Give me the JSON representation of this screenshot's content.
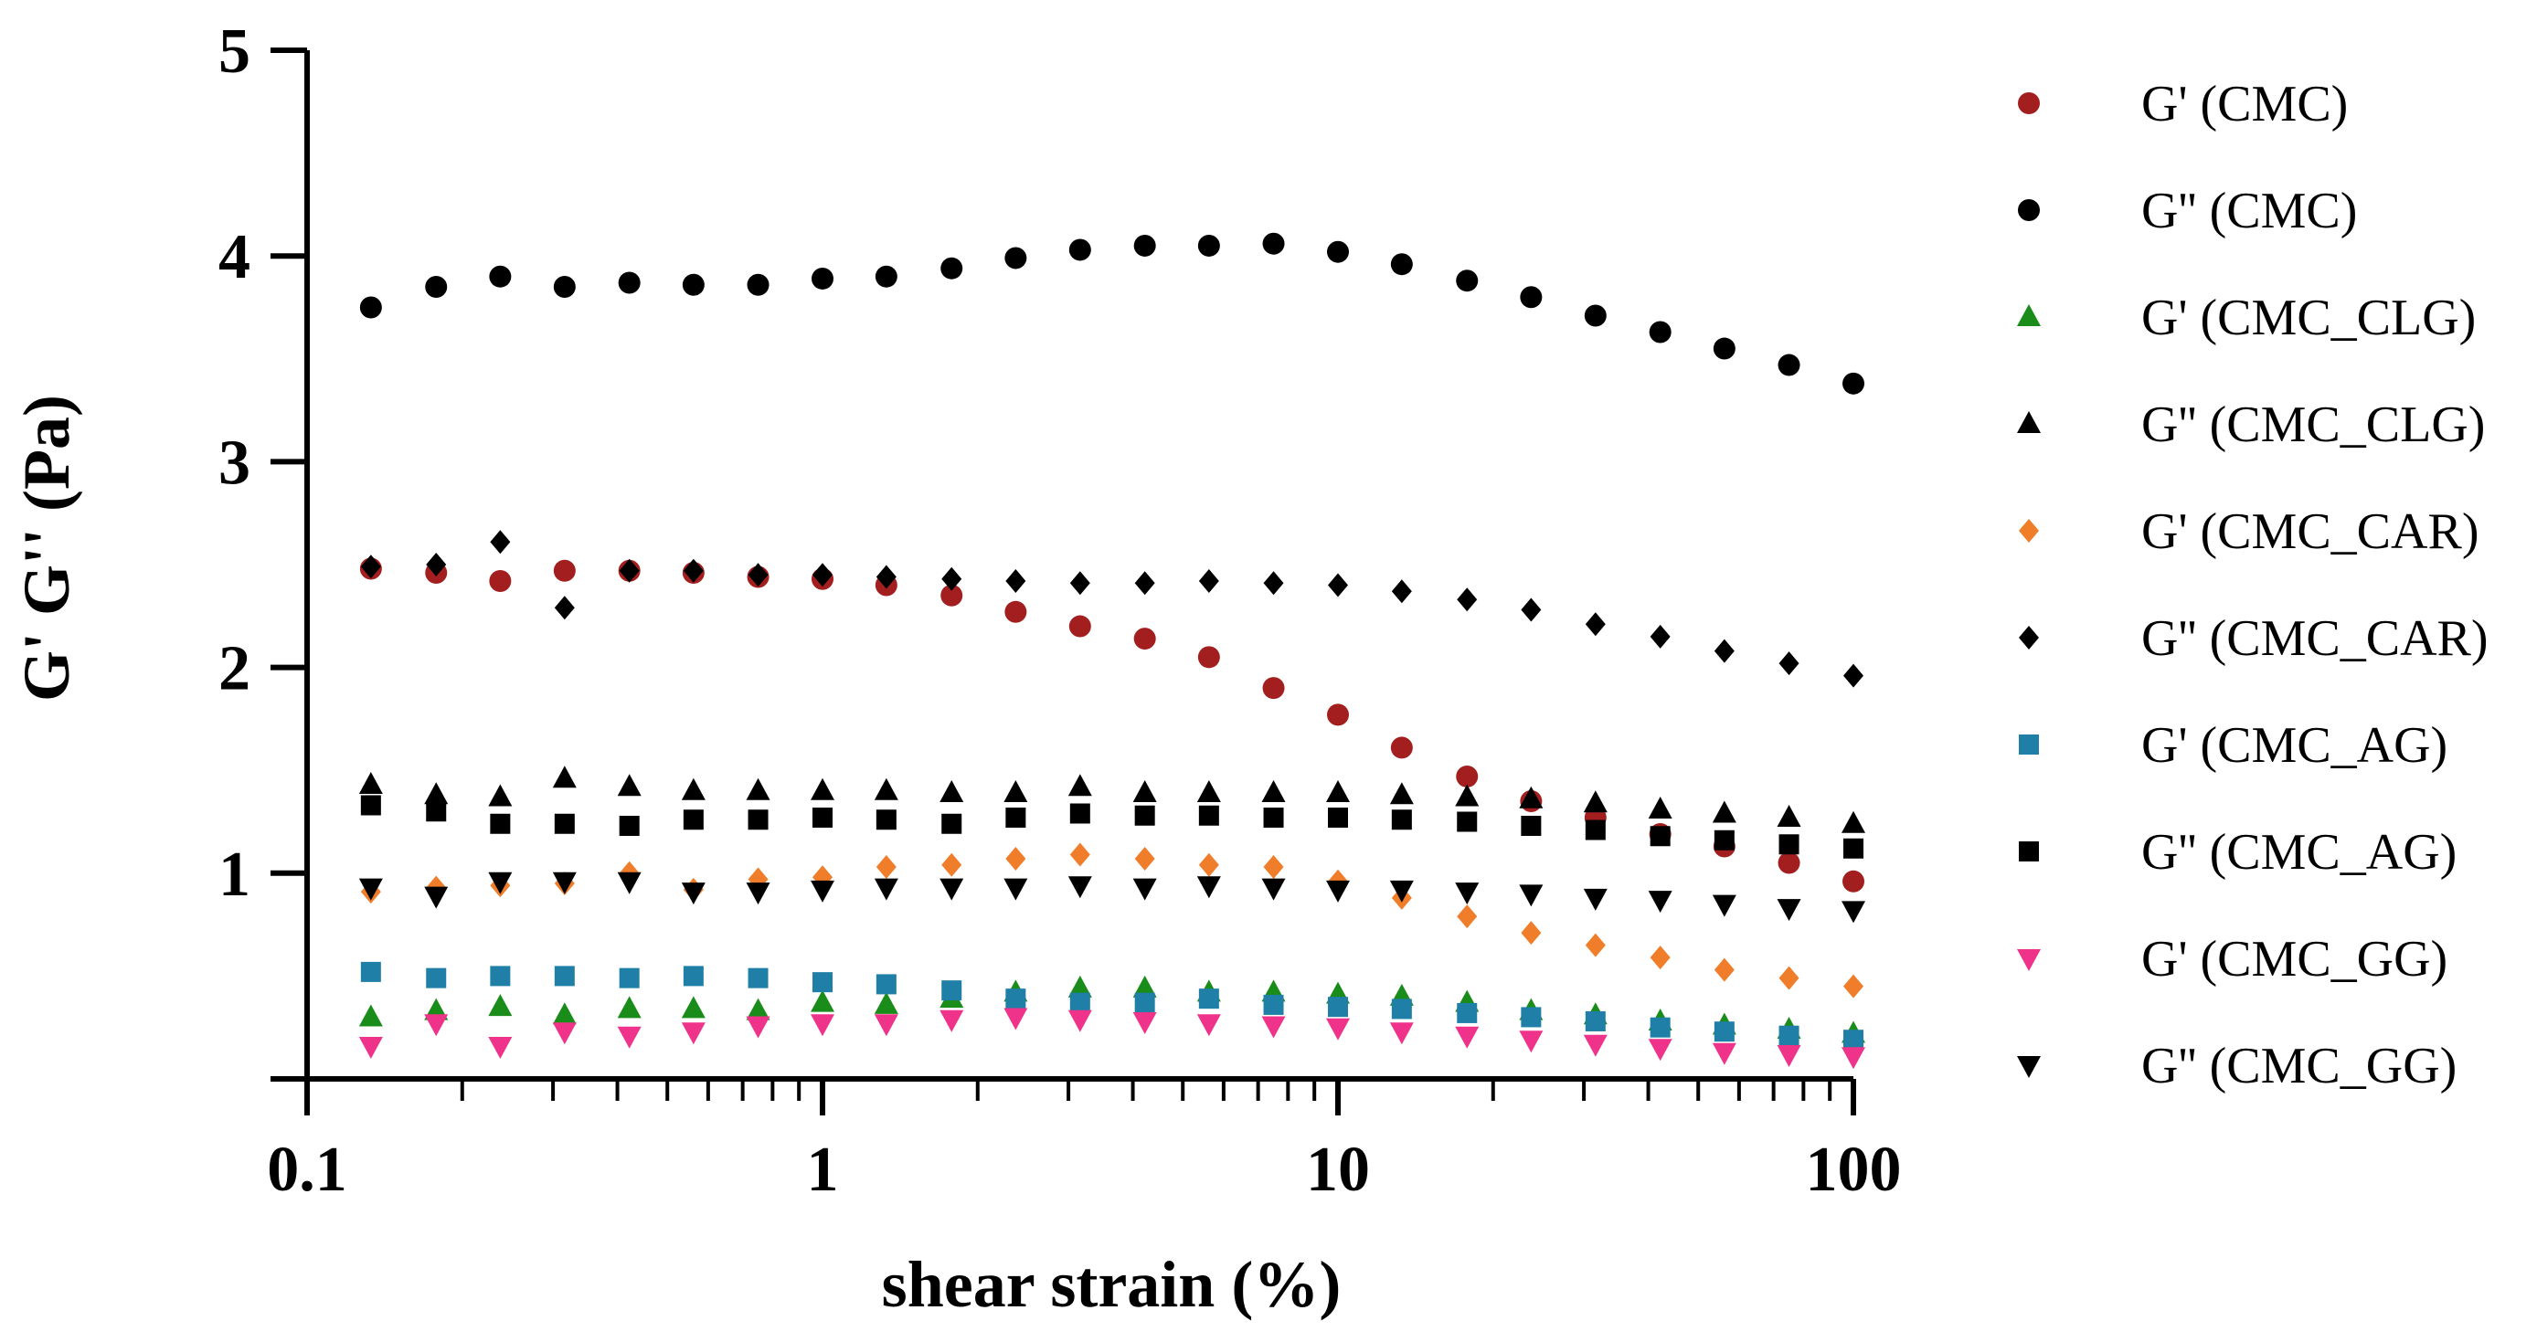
{
  "chart_data": {
    "type": "scatter",
    "title": "",
    "xlabel": "shear strain (%)",
    "ylabel": "G' G'' (Pa)",
    "xscale": "log",
    "xlim": [
      0.1,
      100
    ],
    "ylim": [
      0,
      5
    ],
    "xticks": [
      {
        "value": 0.1,
        "label": "0.1"
      },
      {
        "value": 1,
        "label": "1"
      },
      {
        "value": 10,
        "label": "10"
      },
      {
        "value": 100,
        "label": "100"
      }
    ],
    "yticks": [
      {
        "value": 1,
        "label": "1"
      },
      {
        "value": 2,
        "label": "2"
      },
      {
        "value": 3,
        "label": "3"
      },
      {
        "value": 4,
        "label": "4"
      },
      {
        "value": 5,
        "label": "5"
      }
    ],
    "legend_position": "right",
    "x": [
      0.133,
      0.178,
      0.237,
      0.316,
      0.422,
      0.562,
      0.75,
      1.0,
      1.33,
      1.78,
      2.37,
      3.16,
      4.22,
      5.62,
      7.5,
      10.0,
      13.3,
      17.8,
      23.7,
      31.6,
      42.2,
      56.2,
      75.0,
      100.0
    ],
    "series": [
      {
        "name": "G' (CMC)",
        "marker": "circle",
        "color": "#a31f1f",
        "values": [
          2.48,
          2.46,
          2.42,
          2.47,
          2.47,
          2.46,
          2.44,
          2.43,
          2.4,
          2.35,
          2.27,
          2.2,
          2.14,
          2.05,
          1.9,
          1.77,
          1.61,
          1.47,
          1.35,
          1.27,
          1.19,
          1.13,
          1.05,
          0.96
        ]
      },
      {
        "name": "G'' (CMC)",
        "marker": "circle",
        "color": "#000000",
        "values": [
          3.75,
          3.85,
          3.9,
          3.85,
          3.87,
          3.86,
          3.86,
          3.89,
          3.9,
          3.94,
          3.99,
          4.03,
          4.05,
          4.05,
          4.06,
          4.02,
          3.96,
          3.88,
          3.8,
          3.71,
          3.63,
          3.55,
          3.47,
          3.38
        ]
      },
      {
        "name": "G' (CMC_CLG)",
        "marker": "triangle-up",
        "color": "#1a8c1a",
        "values": [
          0.3,
          0.33,
          0.35,
          0.31,
          0.34,
          0.34,
          0.33,
          0.37,
          0.36,
          0.39,
          0.42,
          0.44,
          0.44,
          0.42,
          0.42,
          0.41,
          0.4,
          0.37,
          0.33,
          0.31,
          0.28,
          0.26,
          0.24,
          0.22
        ]
      },
      {
        "name": "G'' (CMC_CLG)",
        "marker": "triangle-up",
        "color": "#000000",
        "values": [
          1.43,
          1.38,
          1.37,
          1.46,
          1.42,
          1.4,
          1.4,
          1.4,
          1.4,
          1.39,
          1.39,
          1.42,
          1.39,
          1.39,
          1.39,
          1.39,
          1.38,
          1.37,
          1.36,
          1.34,
          1.31,
          1.29,
          1.27,
          1.24
        ]
      },
      {
        "name": "G' (CMC_CAR)",
        "marker": "diamond",
        "color": "#f07d2a",
        "values": [
          0.91,
          0.93,
          0.94,
          0.95,
          1.0,
          0.92,
          0.97,
          0.98,
          1.03,
          1.04,
          1.07,
          1.09,
          1.07,
          1.04,
          1.03,
          0.96,
          0.88,
          0.79,
          0.71,
          0.65,
          0.59,
          0.53,
          0.49,
          0.45
        ]
      },
      {
        "name": "G'' (CMC_CAR)",
        "marker": "diamond",
        "color": "#000000",
        "values": [
          2.49,
          2.5,
          2.61,
          2.29,
          2.47,
          2.47,
          2.45,
          2.45,
          2.44,
          2.43,
          2.42,
          2.41,
          2.41,
          2.42,
          2.41,
          2.4,
          2.37,
          2.33,
          2.28,
          2.21,
          2.15,
          2.08,
          2.02,
          1.96
        ]
      },
      {
        "name": "G' (CMC_AG)",
        "marker": "square",
        "color": "#1f7fa6",
        "values": [
          0.52,
          0.49,
          0.5,
          0.5,
          0.49,
          0.5,
          0.49,
          0.47,
          0.46,
          0.43,
          0.39,
          0.37,
          0.37,
          0.39,
          0.36,
          0.35,
          0.34,
          0.32,
          0.3,
          0.28,
          0.25,
          0.23,
          0.21,
          0.19
        ]
      },
      {
        "name": "G'' (CMC_AG)",
        "marker": "square",
        "color": "#000000",
        "values": [
          1.33,
          1.3,
          1.24,
          1.24,
          1.23,
          1.26,
          1.26,
          1.27,
          1.26,
          1.24,
          1.27,
          1.29,
          1.28,
          1.28,
          1.27,
          1.27,
          1.26,
          1.25,
          1.23,
          1.21,
          1.18,
          1.16,
          1.14,
          1.12
        ]
      },
      {
        "name": "G' (CMC_GG)",
        "marker": "triangle-down",
        "color": "#f0338a",
        "values": [
          0.16,
          0.27,
          0.16,
          0.23,
          0.21,
          0.23,
          0.26,
          0.27,
          0.27,
          0.29,
          0.3,
          0.29,
          0.28,
          0.27,
          0.26,
          0.25,
          0.23,
          0.21,
          0.19,
          0.17,
          0.15,
          0.13,
          0.12,
          0.11
        ]
      },
      {
        "name": "G'' (CMC_GG)",
        "marker": "triangle-down",
        "color": "#000000",
        "values": [
          0.93,
          0.89,
          0.96,
          0.96,
          0.96,
          0.91,
          0.91,
          0.92,
          0.93,
          0.93,
          0.93,
          0.94,
          0.93,
          0.94,
          0.93,
          0.92,
          0.92,
          0.91,
          0.9,
          0.88,
          0.87,
          0.85,
          0.83,
          0.82
        ]
      }
    ]
  }
}
